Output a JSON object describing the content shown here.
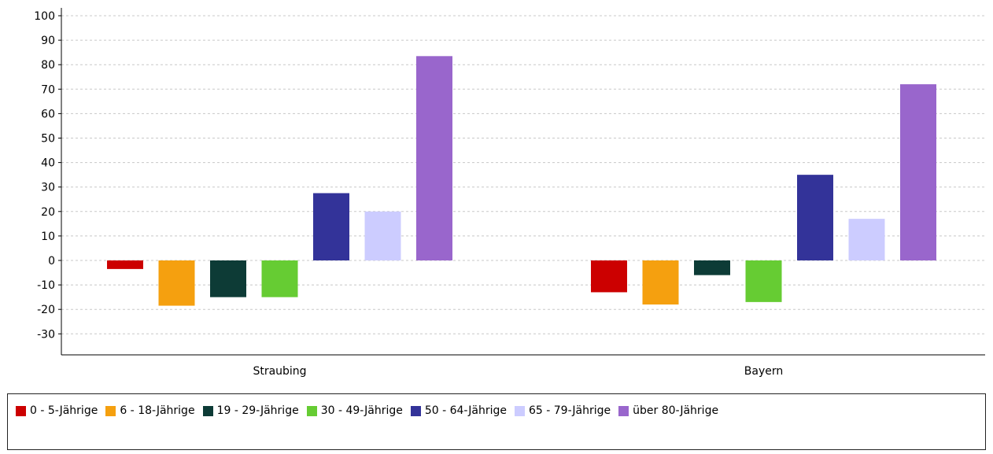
{
  "chart_data": {
    "type": "bar",
    "categories": [
      "Straubing",
      "Bayern"
    ],
    "series": [
      {
        "name": "0 - 5-Jährige",
        "color": "#cc0000",
        "values": [
          -3.5,
          -13
        ]
      },
      {
        "name": "6 - 18-Jährige",
        "color": "#f5a00f",
        "values": [
          -18.5,
          -18
        ]
      },
      {
        "name": "19 - 29-Jährige",
        "color": "#0d3b36",
        "values": [
          -15,
          -6
        ]
      },
      {
        "name": "30 - 49-Jährige",
        "color": "#66cc33",
        "values": [
          -15,
          -17
        ]
      },
      {
        "name": "50 - 64-Jährige",
        "color": "#333399",
        "values": [
          27.5,
          35
        ]
      },
      {
        "name": "65 - 79-Jährige",
        "color": "#ccccff",
        "values": [
          20,
          17
        ]
      },
      {
        "name": "über 80-Jährige",
        "color": "#9966cc",
        "values": [
          83.5,
          72
        ]
      }
    ],
    "yticks": [
      "100",
      "90",
      "80",
      "70",
      "60",
      "50",
      "40",
      "30",
      "20",
      "10",
      "0",
      "-10",
      "-20",
      "-30"
    ],
    "ylim": [
      -40,
      100
    ],
    "grid": true,
    "legend_position": "bottom"
  }
}
